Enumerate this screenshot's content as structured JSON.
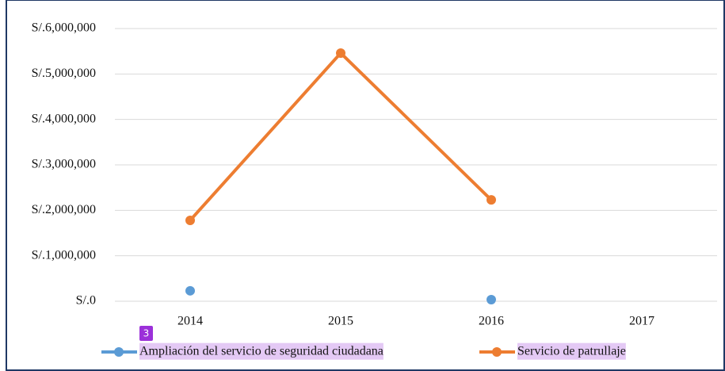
{
  "chart_data": {
    "type": "line",
    "categories": [
      "2014",
      "2015",
      "2016",
      "2017"
    ],
    "series": [
      {
        "name": "Ampliación del servicio de seguridad ciudadana",
        "color": "#5b9bd5",
        "values": [
          230000,
          null,
          35000,
          null
        ]
      },
      {
        "name": "Servicio de patrullaje",
        "color": "#ed7d31",
        "values": [
          1780000,
          5460000,
          2230000,
          null
        ]
      }
    ],
    "ylim": [
      0,
      6000000
    ],
    "yticks": [
      {
        "value": 0,
        "label": "S/.0"
      },
      {
        "value": 1000000,
        "label": "S/.1,000,000"
      },
      {
        "value": 2000000,
        "label": "S/.2,000,000"
      },
      {
        "value": 3000000,
        "label": "S/.3,000,000"
      },
      {
        "value": 4000000,
        "label": "S/.4,000,000"
      },
      {
        "value": 5000000,
        "label": "S/.5,000,000"
      },
      {
        "value": 6000000,
        "label": "S/.6,000,000"
      }
    ],
    "grid": true,
    "legend": "bottom",
    "annotation_marker": "3"
  }
}
